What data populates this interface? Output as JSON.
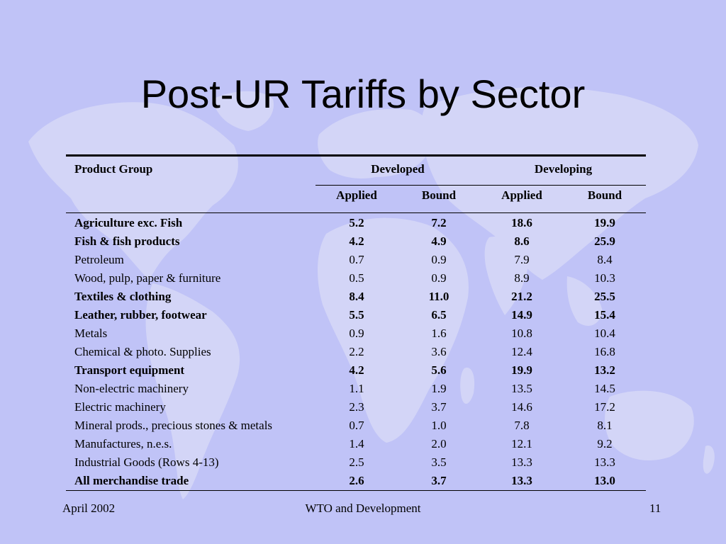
{
  "slide": {
    "title": "Post-UR Tariffs by Sector",
    "footer_left": "April 2002",
    "footer_center": "WTO and Development",
    "footer_right": "11"
  },
  "table": {
    "header": {
      "product_group": "Product Group",
      "developed": "Developed",
      "developing": "Developing",
      "applied": "Applied",
      "bound": "Bound"
    },
    "rows": [
      {
        "name": "Agriculture exc. Fish",
        "dev_applied": "5.2",
        "dev_bound": "7.2",
        "dvg_applied": "18.6",
        "dvg_bound": "19.9",
        "bold": true
      },
      {
        "name": "Fish & fish products",
        "dev_applied": "4.2",
        "dev_bound": "4.9",
        "dvg_applied": "8.6",
        "dvg_bound": "25.9",
        "bold": true
      },
      {
        "name": "Petroleum",
        "dev_applied": "0.7",
        "dev_bound": "0.9",
        "dvg_applied": "7.9",
        "dvg_bound": "8.4",
        "bold": false
      },
      {
        "name": "Wood, pulp, paper & furniture",
        "dev_applied": "0.5",
        "dev_bound": "0.9",
        "dvg_applied": "8.9",
        "dvg_bound": "10.3",
        "bold": false
      },
      {
        "name": "Textiles & clothing",
        "dev_applied": "8.4",
        "dev_bound": "11.0",
        "dvg_applied": "21.2",
        "dvg_bound": "25.5",
        "bold": true
      },
      {
        "name": "Leather, rubber, footwear",
        "dev_applied": "5.5",
        "dev_bound": "6.5",
        "dvg_applied": "14.9",
        "dvg_bound": "15.4",
        "bold": true
      },
      {
        "name": "Metals",
        "dev_applied": "0.9",
        "dev_bound": "1.6",
        "dvg_applied": "10.8",
        "dvg_bound": "10.4",
        "bold": false
      },
      {
        "name": "Chemical & photo. Supplies",
        "dev_applied": "2.2",
        "dev_bound": "3.6",
        "dvg_applied": "12.4",
        "dvg_bound": "16.8",
        "bold": false
      },
      {
        "name": "Transport equipment",
        "dev_applied": "4.2",
        "dev_bound": "5.6",
        "dvg_applied": "19.9",
        "dvg_bound": "13.2",
        "bold": true
      },
      {
        "name": "Non-electric machinery",
        "dev_applied": "1.1",
        "dev_bound": "1.9",
        "dvg_applied": "13.5",
        "dvg_bound": "14.5",
        "bold": false
      },
      {
        "name": "Electric machinery",
        "dev_applied": "2.3",
        "dev_bound": "3.7",
        "dvg_applied": "14.6",
        "dvg_bound": "17.2",
        "bold": false
      },
      {
        "name": "Mineral prods., precious stones & metals",
        "dev_applied": "0.7",
        "dev_bound": "1.0",
        "dvg_applied": "7.8",
        "dvg_bound": "8.1",
        "bold": false
      },
      {
        "name": "Manufactures, n.e.s.",
        "dev_applied": "1.4",
        "dev_bound": "2.0",
        "dvg_applied": "12.1",
        "dvg_bound": "9.2",
        "bold": false
      },
      {
        "name": "Industrial Goods (Rows 4-13)",
        "dev_applied": "2.5",
        "dev_bound": "3.5",
        "dvg_applied": "13.3",
        "dvg_bound": "13.3",
        "bold": false
      },
      {
        "name": "All merchandise trade",
        "dev_applied": "2.6",
        "dev_bound": "3.7",
        "dvg_applied": "13.3",
        "dvg_bound": "13.0",
        "bold": true
      }
    ]
  },
  "colors": {
    "background": "#c0c3f7",
    "map_land": "#d4d6f6"
  }
}
